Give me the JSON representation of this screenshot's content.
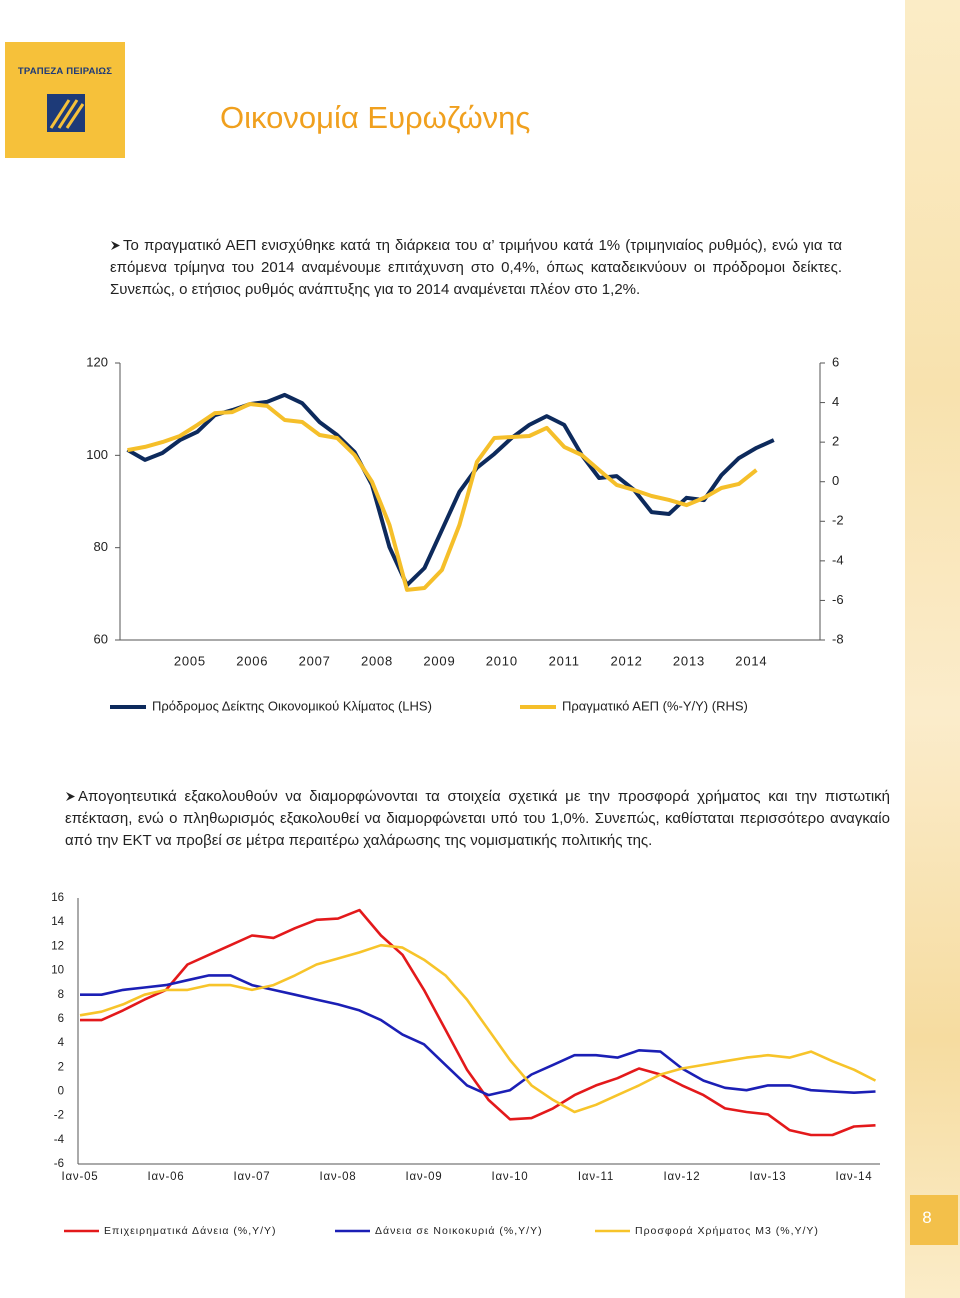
{
  "header": {
    "bank_name": "ΤΡΑΠΕΖΑ ΠΕΙΡΑΙΩΣ",
    "title": "Οικονομία Ευρωζώνης"
  },
  "paragraphs": [
    "Το πραγματικό ΑΕΠ ενισχύθηκε κατά τη διάρκεια του α’ τριμήνου κατά 1% (τριμηνιαίος ρυθμός), ενώ για τα επόμενα τρίμηνα του 2014 αναμένουμε επιτάχυνση στο 0,4%, όπως καταδεικνύουν οι πρόδρομοι δείκτες. Συνεπώς, ο ετήσιος ρυθμός ανάπτυξης για το 2014 αναμένεται πλέον στο 1,2%.",
    "Απογοητευτικά εξακολουθούν να διαμορφώνονται τα στοιχεία σχετικά με την προσφορά χρήματος και την πιστωτική επέκταση, ενώ ο πληθωρισμός εξακολουθεί να διαμορφώνεται υπό του 1,0%. Συνεπώς, καθίσταται περισσότερο αναγκαίο από την ΕΚΤ να προβεί σε μέτρα περαιτέρω χαλάρωσης της νομισματικής πολιτικής της."
  ],
  "page_number": 8,
  "chart_data": [
    {
      "type": "line",
      "x": [
        2004,
        2004.28,
        2004.56,
        2004.84,
        2005.12,
        2005.4,
        2005.68,
        2005.96,
        2006.24,
        2006.52,
        2006.8,
        2007.08,
        2007.36,
        2007.64,
        2007.92,
        2008.2,
        2008.48,
        2008.76,
        2009.04,
        2009.32,
        2009.6,
        2009.88,
        2010.16,
        2010.44,
        2010.72,
        2011,
        2011.28,
        2011.56,
        2011.84,
        2012.12,
        2012.4,
        2012.68,
        2012.96,
        2013.24,
        2013.52,
        2013.8,
        2014.08,
        2014.36
      ],
      "xlim": [
        2003.88,
        2015.1
      ],
      "xticks": [
        2005,
        2006,
        2007,
        2008,
        2009,
        2010,
        2011,
        2012,
        2013,
        2014
      ],
      "ylim": [
        60,
        120
      ],
      "yticks": [
        60,
        80,
        100,
        120
      ],
      "y2lim": [
        -8,
        6
      ],
      "y2ticks": [
        -8,
        -6,
        -4,
        -2,
        0,
        2,
        4,
        6
      ],
      "legend": "bottom",
      "series": [
        {
          "name": "Πρόδρομος Δείκτης Οικονομικού Κλίματος (LHS)",
          "color": "#0d2a5c",
          "values": [
            101.2,
            99.0,
            100.5,
            103.3,
            105.1,
            108.7,
            109.8,
            111.1,
            111.6,
            113.1,
            111.3,
            107.2,
            104.4,
            100.7,
            93.6,
            80.1,
            71.9,
            75.6,
            83.8,
            92.1,
            97.3,
            100.3,
            103.8,
            106.6,
            108.5,
            106.6,
            100.1,
            95.1,
            95.5,
            92.5,
            87.7,
            87.3,
            90.8,
            90.3,
            95.7,
            99.4,
            101.6,
            103.3
          ]
        },
        {
          "name": "Πραγματικό ΑΕΠ (%-Y/Y) (RHS)",
          "color": "#f5bf2a",
          "axis": "y2",
          "values": [
            1.6,
            1.76,
            2.0,
            2.31,
            2.87,
            3.47,
            3.52,
            3.93,
            3.83,
            3.12,
            3.02,
            2.36,
            2.21,
            1.35,
            0.0,
            -2.19,
            -5.47,
            -5.37,
            -4.46,
            -2.19,
            1.0,
            2.21,
            2.26,
            2.31,
            2.72,
            1.76,
            1.35,
            0.59,
            -0.16,
            -0.42,
            -0.72,
            -0.92,
            -1.18,
            -0.82,
            -0.32,
            -0.11,
            0.59,
            null
          ]
        }
      ]
    },
    {
      "type": "line",
      "categories": [
        "Ιαν-05",
        null,
        null,
        null,
        "Ιαν-06",
        null,
        null,
        null,
        "Ιαν-07",
        null,
        null,
        null,
        "Ιαν-08",
        null,
        null,
        null,
        "Ιαν-09",
        null,
        null,
        null,
        "Ιαν-10",
        null,
        null,
        null,
        "Ιαν-11",
        null,
        null,
        null,
        "Ιαν-12",
        null,
        null,
        null,
        "Ιαν-13",
        null,
        null,
        null,
        "Ιαν-14",
        null
      ],
      "ylim": [
        -6,
        16
      ],
      "yticks": [
        -6,
        -4,
        -2,
        0,
        2,
        4,
        6,
        8,
        10,
        12,
        14,
        16
      ],
      "legend": "bottom",
      "series": [
        {
          "name": "Επιχειρηματικά Δάνεια (%,Υ/Υ)",
          "color": "#e3191b",
          "values": [
            5.9,
            5.9,
            6.7,
            7.6,
            8.4,
            10.5,
            11.3,
            12.1,
            12.9,
            12.7,
            13.5,
            14.2,
            14.3,
            15.0,
            12.9,
            11.3,
            8.4,
            5.1,
            1.8,
            -0.7,
            -2.3,
            -2.2,
            -1.4,
            -0.3,
            0.5,
            1.1,
            1.9,
            1.4,
            0.5,
            -0.3,
            -1.4,
            -1.7,
            -1.9,
            -3.2,
            -3.6,
            -3.6,
            -2.9,
            -2.8
          ]
        },
        {
          "name": "Δάνεια σε Νοικοκυριά (%,Υ/Υ)",
          "color": "#1b1fb5",
          "values": [
            8.0,
            8.0,
            8.4,
            8.6,
            8.8,
            9.2,
            9.6,
            9.6,
            8.8,
            8.4,
            8.0,
            7.6,
            7.2,
            6.7,
            5.9,
            4.7,
            3.9,
            2.2,
            0.5,
            -0.3,
            0.1,
            1.4,
            2.2,
            3.0,
            3.0,
            2.8,
            3.4,
            3.3,
            1.9,
            0.9,
            0.3,
            0.1,
            0.5,
            0.5,
            0.1,
            0.0,
            -0.1,
            0.0
          ]
        },
        {
          "name": "Προσφορά Χρήματος Μ3 (%,Υ/Υ)",
          "color": "#f7c42a",
          "values": [
            6.3,
            6.6,
            7.2,
            8.0,
            8.4,
            8.4,
            8.8,
            8.8,
            8.4,
            8.8,
            9.6,
            10.5,
            11.0,
            11.5,
            12.1,
            11.9,
            10.9,
            9.6,
            7.6,
            5.1,
            2.6,
            0.5,
            -0.7,
            -1.7,
            -1.1,
            -0.3,
            0.5,
            1.4,
            1.9,
            2.2,
            2.5,
            2.8,
            3.0,
            2.8,
            3.3,
            2.5,
            1.8,
            0.9
          ]
        }
      ]
    }
  ]
}
